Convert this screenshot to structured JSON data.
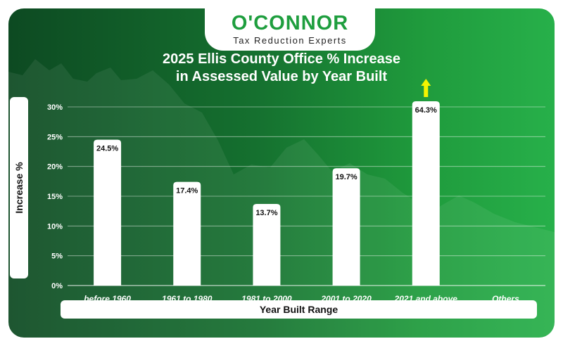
{
  "brand": {
    "name": "O'CONNOR",
    "tagline": "Tax Reduction Experts"
  },
  "colors": {
    "bar": "#ffffff",
    "arrow": "#f4f400",
    "brand_green": "#1e9e3e",
    "gridline": "#ffffff"
  },
  "chart_data": {
    "type": "bar",
    "title_line1": "2025 Ellis County Office % Increase",
    "title_line2": "in Assessed Value by Year Built",
    "xlabel": "Year Built Range",
    "ylabel": "Increase %",
    "categories": [
      "before 1960",
      "1961 to 1980",
      "1981 to 2000",
      "2001 to 2020",
      "2021 and above",
      "Others"
    ],
    "values": [
      24.5,
      17.4,
      13.7,
      19.7,
      64.3,
      null
    ],
    "data_labels": [
      "24.5%",
      "17.4%",
      "13.7%",
      "19.7%",
      "64.3%",
      ""
    ],
    "ylim": [
      0,
      30
    ],
    "yticks": [
      0,
      5,
      10,
      15,
      20,
      25,
      30
    ],
    "ytick_labels": [
      "0%",
      "5%",
      "10%",
      "15%",
      "20%",
      "25%",
      "30%"
    ],
    "clipped_bars": [
      "2021 and above"
    ],
    "grid": true
  }
}
